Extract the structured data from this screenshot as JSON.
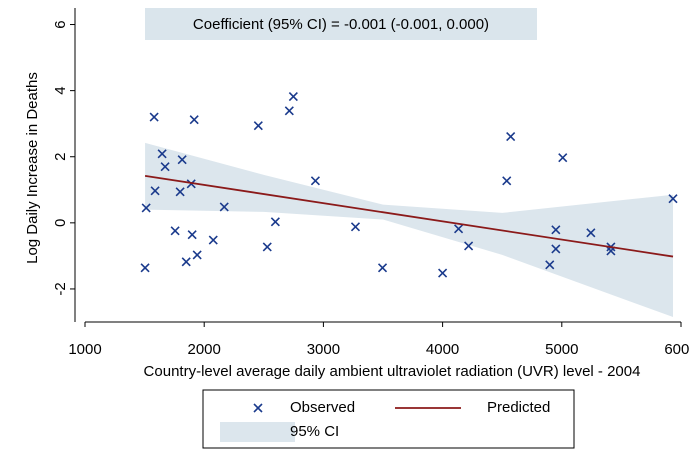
{
  "chart_data": {
    "type": "scatter",
    "annotation": "Coefficient (95% CI) = -0.001 (-0.001, 0.000)",
    "xlabel": "Country-level average daily ambient ultraviolet radiation (UVR) level - 2004",
    "ylabel": "Log Daily Increase in Deaths",
    "xlim": [
      1000,
      6000
    ],
    "xticks": [
      1000,
      2000,
      3000,
      4000,
      5000,
      6000
    ],
    "ylim": [
      -3,
      6.5
    ],
    "yticks": [
      -2,
      0,
      2,
      4,
      6
    ],
    "series": [
      {
        "name": "Observed",
        "type": "scatter",
        "color": "#1a3a8c",
        "x": [
          1504,
          1513,
          1580,
          1588,
          1647,
          1672,
          1756,
          1798,
          1815,
          1849,
          1891,
          1899,
          1916,
          1941,
          2076,
          2168,
          2454,
          2529,
          2597,
          2714,
          2748,
          2933,
          3269,
          3496,
          4000,
          4134,
          4218,
          4538,
          4571,
          4899,
          5008,
          4950,
          4950,
          5244,
          5412,
          5412,
          5933
        ],
        "values": [
          -1.36,
          0.45,
          3.2,
          0.97,
          2.09,
          1.7,
          -0.24,
          0.94,
          1.91,
          -1.18,
          1.18,
          -0.36,
          3.12,
          -0.97,
          -0.52,
          0.48,
          2.94,
          -0.73,
          0.03,
          3.39,
          3.82,
          1.27,
          -0.12,
          -1.36,
          -1.52,
          -0.18,
          -0.7,
          1.27,
          2.61,
          -1.27,
          1.97,
          -0.21,
          -0.79,
          -0.3,
          -0.73,
          -0.85,
          0.73
        ]
      },
      {
        "name": "Predicted",
        "type": "line",
        "color": "#8b1a1a",
        "x": [
          1504,
          5933
        ],
        "values": [
          1.42,
          -1.02
        ]
      },
      {
        "name": "95% CI",
        "type": "band",
        "color": "#dce6ed",
        "x": [
          1504,
          2500,
          3500,
          4500,
          5933
        ],
        "upper": [
          2.42,
          1.45,
          0.55,
          0.3,
          0.85
        ],
        "lower": [
          0.4,
          0.33,
          0.1,
          -0.97,
          -2.85
        ]
      }
    ]
  }
}
